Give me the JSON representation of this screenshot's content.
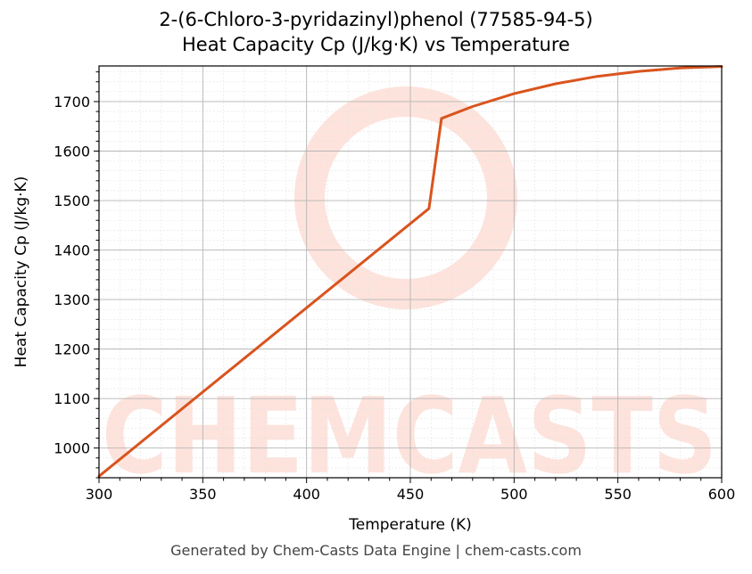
{
  "chart_data": {
    "type": "line",
    "title": "2-(6-Chloro-3-pyridazinyl)phenol (77585-94-5)",
    "subtitle": "Heat Capacity Cp (J/kg·K) vs Temperature",
    "xlabel": "Temperature (K)",
    "ylabel": "Heat Capacity Cp (J/kg·K)",
    "xlim": [
      300,
      600
    ],
    "ylim": [
      940,
      1772
    ],
    "xticks": [
      300,
      350,
      400,
      450,
      500,
      550,
      600
    ],
    "yticks": [
      1000,
      1100,
      1200,
      1300,
      1400,
      1500,
      1600,
      1700
    ],
    "grid": true,
    "line_color": "#d9541e",
    "series": [
      {
        "x": [
          300,
          459,
          465,
          480,
          500,
          520,
          540,
          560,
          580,
          600
        ],
        "y": [
          943,
          1484,
          1666,
          1690,
          1716,
          1736,
          1751,
          1761,
          1768,
          1771
        ]
      }
    ]
  },
  "watermark": {
    "text": "CHEMCASTS",
    "color": "#fde3dc"
  },
  "footer": "Generated by Chem-Casts Data Engine | chem-casts.com"
}
